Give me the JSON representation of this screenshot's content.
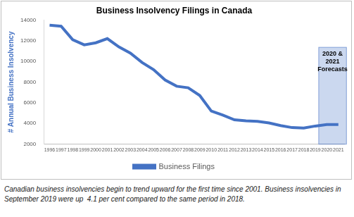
{
  "chart_data": {
    "type": "line",
    "title": "Business Insolvency Filings in Canada",
    "y_label": "# Annual Business Insolvency",
    "categories": [
      "1996",
      "1997",
      "1998",
      "1999",
      "2000",
      "2001",
      "2002",
      "2003",
      "2004",
      "2005",
      "2006",
      "2007",
      "2008",
      "2009",
      "2010",
      "2011",
      "2012",
      "2013",
      "2014",
      "2015",
      "2016",
      "2017",
      "2018",
      "2019",
      "2020",
      "2021"
    ],
    "series": [
      {
        "name": "Business Filings",
        "color": "#4472c4",
        "values": [
          13500,
          13400,
          12100,
          11600,
          11800,
          12200,
          11400,
          10800,
          9900,
          9200,
          8200,
          7600,
          7450,
          6700,
          5200,
          4800,
          4350,
          4250,
          4200,
          4050,
          3800,
          3600,
          3550,
          3750,
          3900,
          3900
        ]
      }
    ],
    "ylim": [
      2000,
      14000
    ],
    "yticks": [
      2000,
      4000,
      6000,
      8000,
      10000,
      12000,
      14000
    ],
    "grid": false,
    "legend": "bottom",
    "annotations": [
      {
        "text": "2020 & 2021 Forecasts",
        "from": "2020",
        "to": "2021"
      }
    ],
    "caption": "Canadian business insolvencies begin to trend upward for the first time since 2001. Business insolvencies in September 2019 were up  4.1 per cent compared to the same period in 2018."
  }
}
